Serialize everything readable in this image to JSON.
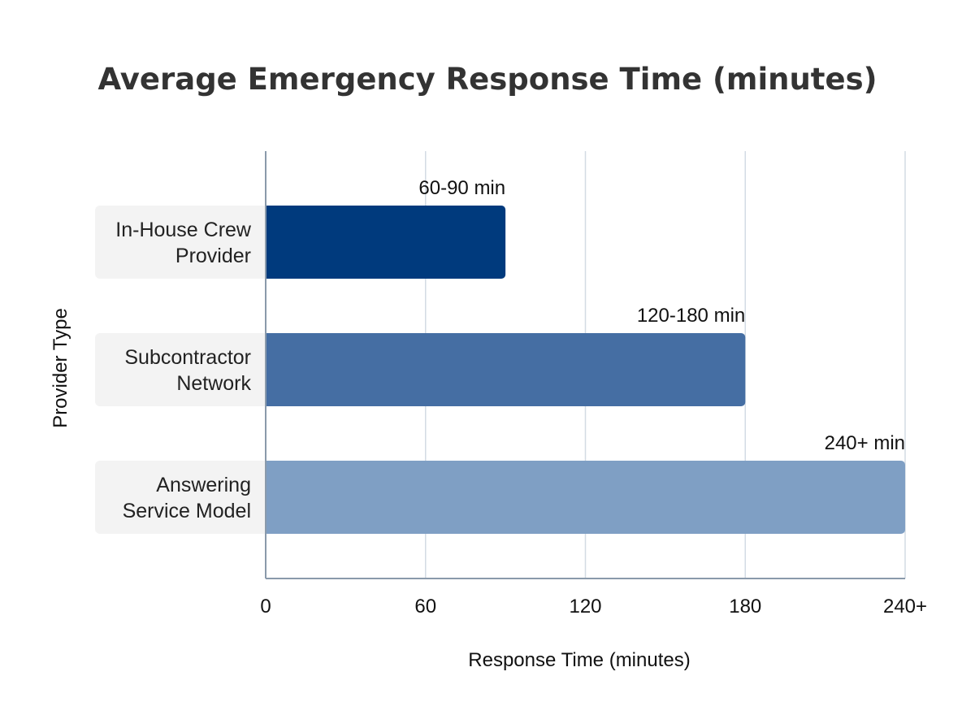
{
  "chart_data": {
    "type": "bar",
    "orientation": "horizontal",
    "title": "Average Emergency Response Time (minutes)",
    "xlabel": "Response Time (minutes)",
    "ylabel": "Provider Type",
    "categories": [
      "In-House Crew Provider",
      "Subcontractor Network",
      "Answering Service Model"
    ],
    "category_lines": [
      [
        "In-House Crew",
        "Provider"
      ],
      [
        "Subcontractor",
        "Network"
      ],
      [
        "Answering",
        "Service Model"
      ]
    ],
    "values": [
      90,
      180,
      240
    ],
    "data_labels": [
      "60-90 min",
      "120-180 min",
      "240+ min"
    ],
    "colors": [
      "#003A7D",
      "#456EA3",
      "#7F9FC4"
    ],
    "xlim": [
      0,
      240
    ],
    "xticks": [
      0,
      60,
      120,
      180,
      240
    ],
    "xtick_labels": [
      "0",
      "60",
      "120",
      "180",
      "240+"
    ],
    "grid": true,
    "legend": "none"
  }
}
